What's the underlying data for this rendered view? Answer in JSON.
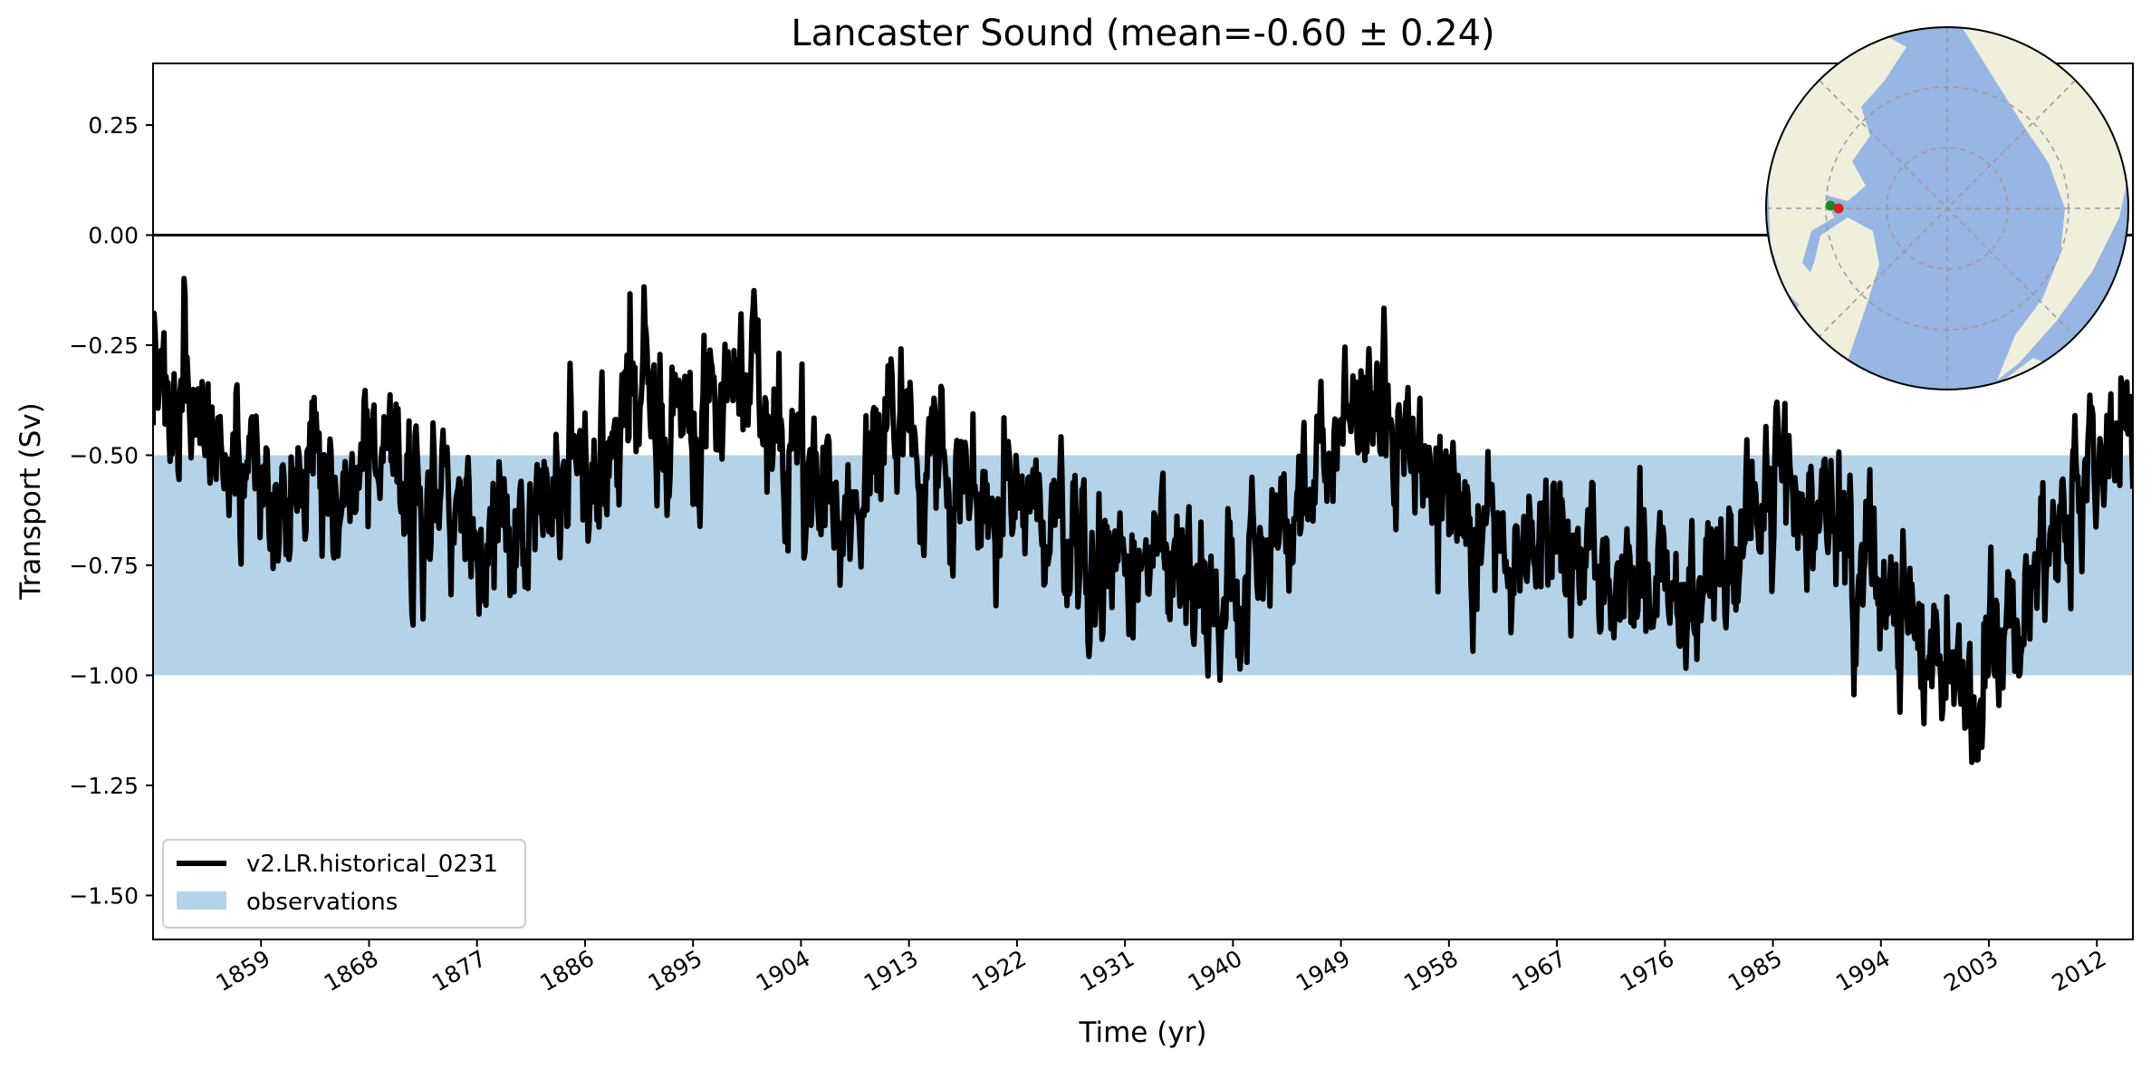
{
  "chart_data": {
    "type": "line",
    "title": "Lancaster Sound (mean=-0.60 ± 0.24)",
    "xlabel": "Time (yr)",
    "ylabel": "Transport (Sv)",
    "xlim": [
      1850,
      2015
    ],
    "ylim": [
      -1.6,
      0.39
    ],
    "x_ticks": [
      1859,
      1868,
      1877,
      1886,
      1895,
      1904,
      1913,
      1922,
      1931,
      1940,
      1949,
      1958,
      1967,
      1976,
      1985,
      1994,
      2003,
      2012
    ],
    "y_ticks": [
      0.25,
      0.0,
      -0.25,
      -0.5,
      -0.75,
      -1.0,
      -1.25,
      -1.5
    ],
    "y_tick_labels": [
      "0.25",
      "0.00",
      "−0.25",
      "−0.50",
      "−0.75",
      "−1.00",
      "−1.25",
      "−1.50"
    ],
    "reference_line": 0.0,
    "observations_band": [
      -1.0,
      -0.5
    ],
    "legend_position": "lower-left",
    "grid": false,
    "series": [
      {
        "name": "v2.LR.historical_0231",
        "color": "#000000",
        "x": [
          1850.0,
          1852.0,
          1854.0,
          1856.0,
          1858.0,
          1860.0,
          1862.0,
          1864.0,
          1866.0,
          1868.0,
          1870.0,
          1872.0,
          1874.0,
          1876.0,
          1878.0,
          1880.0,
          1882.0,
          1884.0,
          1886.0,
          1888.0,
          1890.0,
          1892.0,
          1894.0,
          1896.0,
          1898.0,
          1900.0,
          1902.0,
          1904.0,
          1906.0,
          1908.0,
          1910.0,
          1912.0,
          1914.0,
          1916.0,
          1918.0,
          1920.0,
          1922.0,
          1924.0,
          1926.0,
          1928.0,
          1930.0,
          1932.0,
          1934.0,
          1936.0,
          1938.0,
          1940.0,
          1942.0,
          1944.0,
          1946.0,
          1948.0,
          1950.0,
          1952.0,
          1954.0,
          1956.0,
          1958.0,
          1960.0,
          1962.0,
          1964.0,
          1966.0,
          1968.0,
          1970.0,
          1972.0,
          1974.0,
          1976.0,
          1978.0,
          1980.0,
          1982.0,
          1984.0,
          1986.0,
          1988.0,
          1990.0,
          1992.0,
          1994.0,
          1996.0,
          1998.0,
          2000.0,
          2002.0,
          2004.0,
          2006.0,
          2008.0,
          2010.0,
          2012.0,
          2014.0
        ],
        "values": [
          -0.38,
          -0.35,
          -0.45,
          -0.52,
          -0.55,
          -0.6,
          -0.52,
          -0.5,
          -0.55,
          -0.52,
          -0.55,
          -0.6,
          -0.55,
          -0.6,
          -0.7,
          -0.7,
          -0.6,
          -0.58,
          -0.6,
          -0.5,
          -0.35,
          -0.4,
          -0.42,
          -0.5,
          -0.35,
          -0.3,
          -0.42,
          -0.6,
          -0.65,
          -0.6,
          -0.55,
          -0.48,
          -0.55,
          -0.52,
          -0.55,
          -0.58,
          -0.6,
          -0.65,
          -0.72,
          -0.75,
          -0.7,
          -0.72,
          -0.75,
          -0.78,
          -0.8,
          -0.8,
          -0.75,
          -0.72,
          -0.6,
          -0.48,
          -0.4,
          -0.35,
          -0.4,
          -0.45,
          -0.6,
          -0.7,
          -0.65,
          -0.72,
          -0.68,
          -0.72,
          -0.75,
          -0.8,
          -0.75,
          -0.72,
          -0.78,
          -0.7,
          -0.65,
          -0.6,
          -0.58,
          -0.62,
          -0.65,
          -0.72,
          -0.8,
          -0.9,
          -0.95,
          -1.0,
          -1.05,
          -0.95,
          -0.85,
          -0.75,
          -0.65,
          -0.5,
          -0.45
        ],
        "line_width": 6
      }
    ],
    "observations": {
      "name": "observations",
      "color": "#b4d3e9"
    },
    "inset_map": {
      "projection": "north-polar",
      "ocean_color": "#97b6e3",
      "land_color": "#efefdb",
      "markers": [
        {
          "name": "green",
          "color": "#1b8a1b"
        },
        {
          "name": "red",
          "color": "#d32020"
        }
      ]
    }
  }
}
